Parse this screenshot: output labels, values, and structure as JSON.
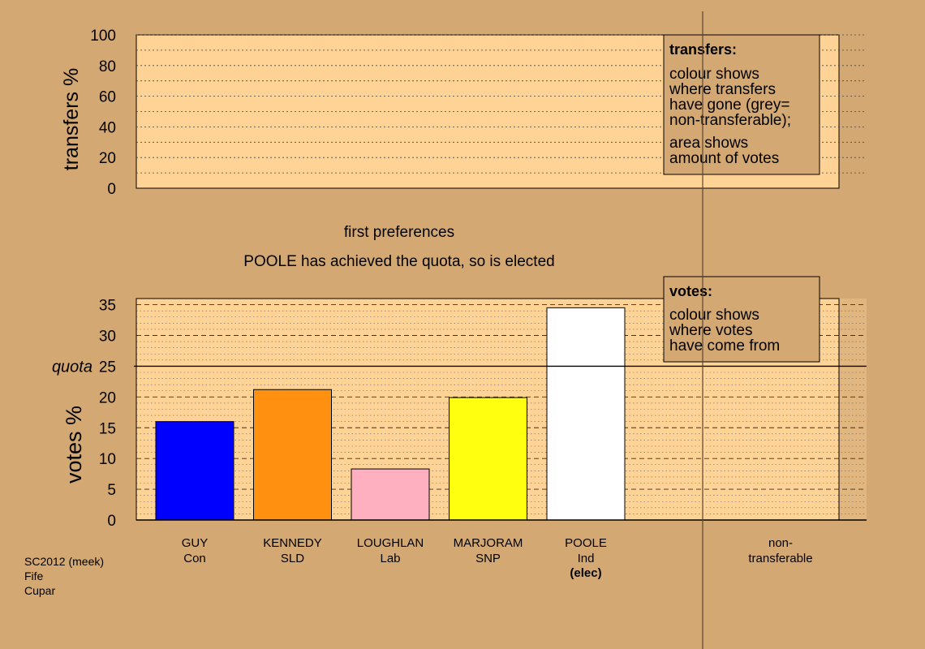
{
  "colors": {
    "background": "#d4a873",
    "plot_background": "#ffd395",
    "nt_background": "#e2b67f"
  },
  "transfers_panel": {
    "ylabel": "transfers %",
    "ylim": [
      0,
      100
    ],
    "yticks": [
      0,
      20,
      40,
      60,
      80,
      100
    ],
    "legend": {
      "title": "transfers:",
      "lines": [
        "colour shows",
        "where transfers",
        "have gone (grey=",
        "non-transferable);"
      ],
      "lines2": [
        "area shows",
        "amount of votes"
      ]
    }
  },
  "stage": {
    "title": "first preferences",
    "subtitle": "POOLE has achieved the quota, so is elected"
  },
  "chart_data": {
    "type": "bar",
    "ylabel": "votes %",
    "ylim": [
      0,
      36
    ],
    "yticks": [
      0,
      5,
      10,
      15,
      20,
      25,
      30,
      35
    ],
    "quota": 25,
    "quota_label": "quota",
    "categories": [
      "GUY",
      "KENNEDY",
      "LOUGHLAN",
      "MARJORAM",
      "POOLE"
    ],
    "parties": [
      "Con",
      "SLD",
      "Lab",
      "SNP",
      "Ind"
    ],
    "values": [
      16.0,
      21.2,
      8.3,
      19.9,
      34.5
    ],
    "colors": [
      "#0000ff",
      "#ff9010",
      "#ffb0c0",
      "#ffff10",
      "#ffffff"
    ],
    "status": [
      "",
      "",
      "",
      "",
      "(elec)"
    ],
    "nontransferable_label": [
      "non-",
      "transferable"
    ],
    "legend": {
      "title": "votes:",
      "lines": [
        "colour shows",
        "where votes",
        "have come from"
      ]
    }
  },
  "footer": [
    "SC2012 (meek)",
    "Fife",
    "Cupar"
  ]
}
